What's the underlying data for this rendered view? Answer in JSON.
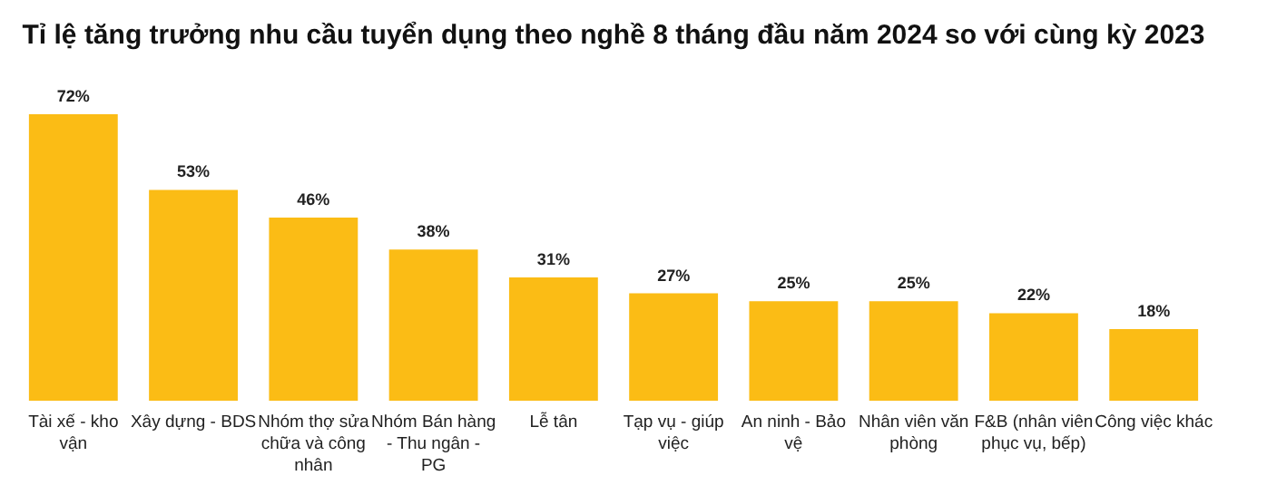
{
  "chart_data": {
    "type": "bar",
    "title": "Tỉ lệ tăng trưởng nhu cầu tuyển dụng theo nghề 8 tháng đầu năm 2024 so với cùng kỳ 2023",
    "categories": [
      "Tài xế - kho vận",
      "Xây dựng - BDS",
      "Nhóm thợ sửa chữa và công nhân",
      "Nhóm Bán hàng - Thu ngân - PG",
      "Lễ tân",
      "Tạp vụ - giúp việc",
      "An ninh - Bảo vệ",
      "Nhân viên văn phòng",
      "F&B (nhân viên phục vụ, bếp)",
      "Công việc khác"
    ],
    "values": [
      72,
      53,
      46,
      38,
      31,
      27,
      25,
      25,
      22,
      18
    ],
    "value_labels": [
      "72%",
      "53%",
      "46%",
      "38%",
      "31%",
      "27%",
      "25%",
      "25%",
      "22%",
      "18%"
    ],
    "color": "#fbbc15",
    "ylim": [
      0,
      72
    ],
    "tick_labels": "x",
    "grid": false
  }
}
